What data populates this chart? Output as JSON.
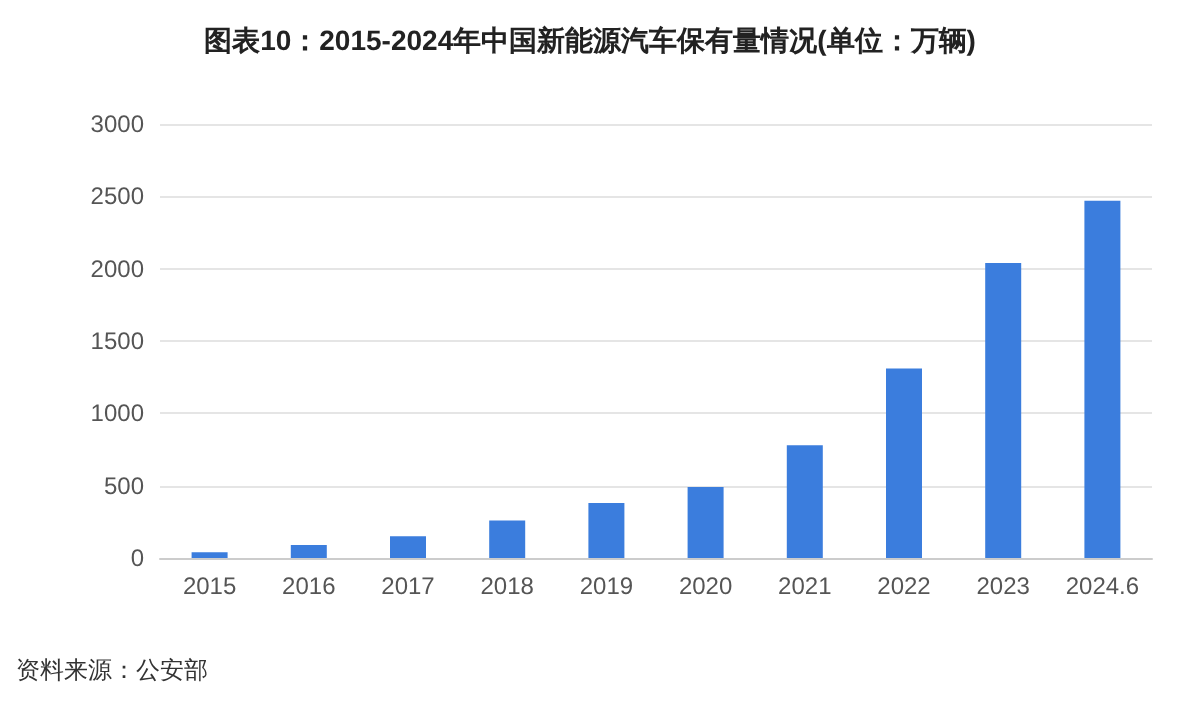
{
  "chart_data": {
    "type": "bar",
    "title": "图表10：2015-2024年中国新能源汽车保有量情况(单位：万辆)",
    "categories": [
      "2015",
      "2016",
      "2017",
      "2018",
      "2019",
      "2020",
      "2021",
      "2022",
      "2023",
      "2024.6"
    ],
    "values": [
      40,
      90,
      150,
      260,
      380,
      490,
      780,
      1310,
      2040,
      2470
    ],
    "color": "#3b7ddd",
    "ylim": [
      0,
      3000
    ],
    "yticks": [
      0,
      500,
      1000,
      1500,
      2000,
      2500,
      3000
    ],
    "grid": "y",
    "annotations": [
      "资料来源：公安部"
    ]
  }
}
